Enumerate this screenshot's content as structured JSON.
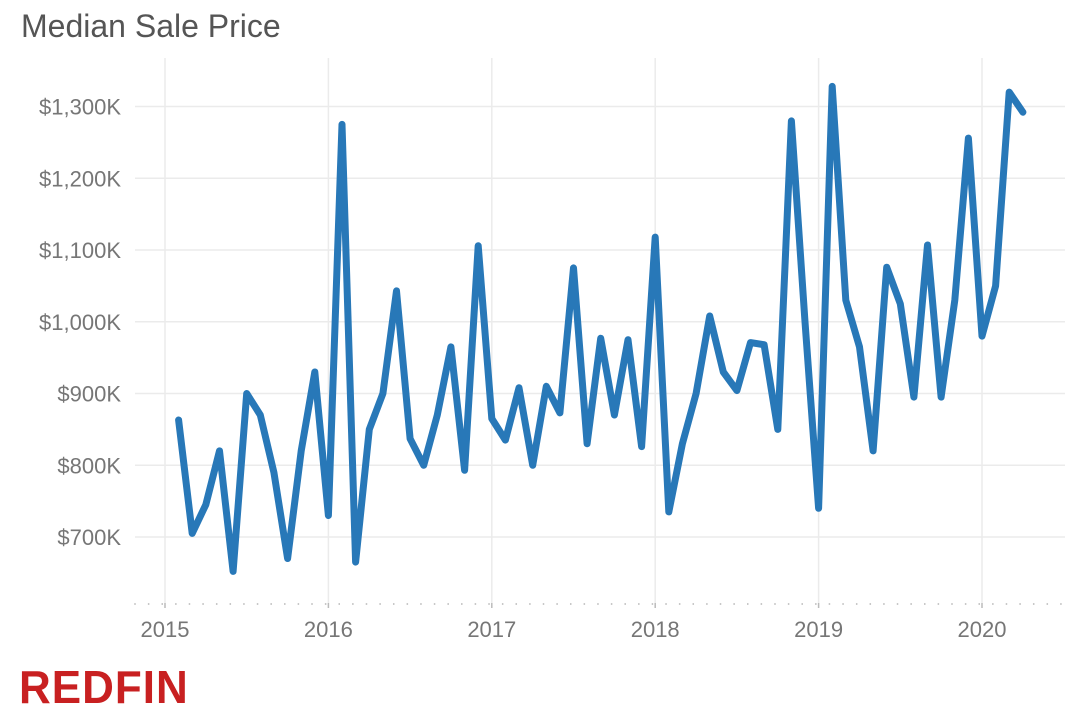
{
  "title": "Median Sale Price",
  "brand": "REDFIN",
  "colors": {
    "line": "#2878b8",
    "grid": "#ebebeb",
    "tick_text": "#767676",
    "title_text": "#555555",
    "brand": "#c82021"
  },
  "chart_data": {
    "type": "line",
    "title": "Median Sale Price",
    "xlabel": "",
    "ylabel": "",
    "x_ticks": [
      "2015",
      "2016",
      "2017",
      "2018",
      "2019",
      "2020"
    ],
    "y_ticks": [
      "$700K",
      "$800K",
      "$900K",
      "$1,000K",
      "$1,100K",
      "$1,200K",
      "$1,300K"
    ],
    "ylim": [
      610,
      1350
    ],
    "grid": true,
    "series": [
      {
        "x": [
          "2015-02",
          "2015-03",
          "2015-04",
          "2015-05",
          "2015-06",
          "2015-07",
          "2015-08",
          "2015-09",
          "2015-10",
          "2015-11",
          "2015-12",
          "2016-01",
          "2016-02",
          "2016-03",
          "2016-04",
          "2016-05",
          "2016-06",
          "2016-07",
          "2016-08",
          "2016-09",
          "2016-10",
          "2016-11",
          "2016-12",
          "2017-01",
          "2017-02",
          "2017-03",
          "2017-04",
          "2017-05",
          "2017-06",
          "2017-07",
          "2017-08",
          "2017-09",
          "2017-10",
          "2017-11",
          "2017-12",
          "2018-01",
          "2018-02",
          "2018-03",
          "2018-04",
          "2018-05",
          "2018-06",
          "2018-07",
          "2018-08",
          "2018-09",
          "2018-10",
          "2018-11",
          "2018-12",
          "2019-01",
          "2019-02",
          "2019-03",
          "2019-04",
          "2019-05",
          "2019-06",
          "2019-07",
          "2019-08",
          "2019-09",
          "2019-10",
          "2019-11",
          "2019-12",
          "2020-01",
          "2020-02",
          "2020-03",
          "2020-04"
        ],
        "values": [
          863,
          705,
          745,
          820,
          652,
          900,
          870,
          790,
          670,
          820,
          930,
          730,
          1275,
          665,
          850,
          900,
          1043,
          837,
          800,
          870,
          965,
          793,
          1106,
          865,
          835,
          908,
          800,
          910,
          873,
          1075,
          830,
          977,
          870,
          975,
          826,
          1118,
          735,
          830,
          900,
          1008,
          930,
          904,
          971,
          968,
          850,
          1280,
          1000,
          740,
          1328,
          1030,
          965,
          820,
          1076,
          1025,
          895,
          1107,
          895,
          1030,
          1256,
          980,
          1050,
          1320,
          1292
        ]
      }
    ]
  }
}
